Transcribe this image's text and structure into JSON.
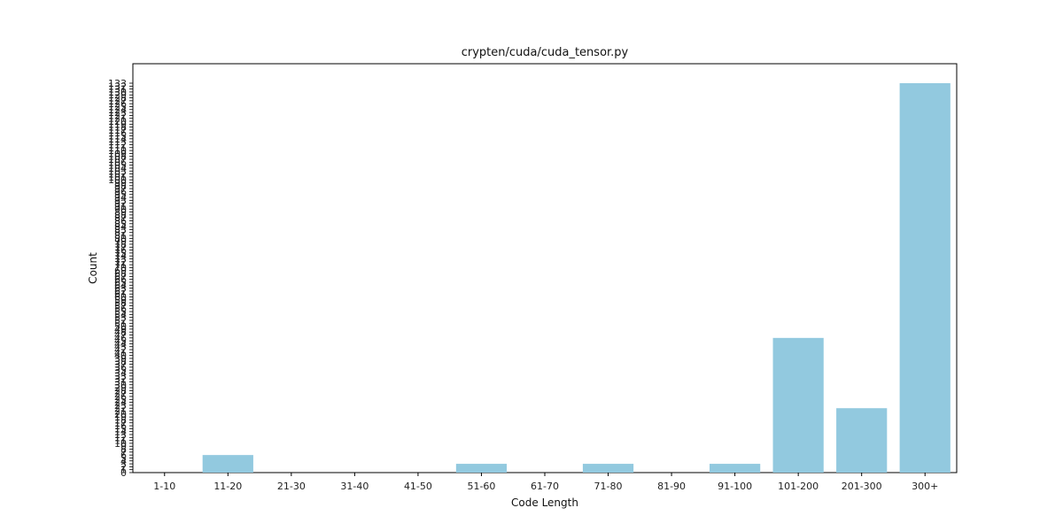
{
  "chart_data": {
    "type": "bar",
    "title": "crypten/cuda/cuda_tensor.py",
    "xlabel": "Code Length",
    "ylabel": "Count",
    "categories": [
      "1-10",
      "11-20",
      "21-30",
      "31-40",
      "41-50",
      "51-60",
      "61-70",
      "71-80",
      "81-90",
      "91-100",
      "101-200",
      "201-300",
      "300+"
    ],
    "values": [
      0,
      6,
      0,
      0,
      0,
      3,
      0,
      3,
      0,
      3,
      46,
      22,
      133
    ],
    "ylim": [
      0,
      140
    ],
    "yticks": [
      0,
      1,
      2,
      3,
      4,
      5,
      6,
      7,
      8,
      9,
      10,
      11,
      12,
      13,
      14,
      15,
      16,
      17,
      18,
      19,
      20,
      21,
      22,
      23,
      24,
      25,
      26,
      27,
      28,
      29,
      30,
      31,
      32,
      33,
      34,
      35,
      36,
      37,
      38,
      39,
      40,
      41,
      42,
      43,
      44,
      45,
      46,
      47,
      48,
      49,
      50,
      51,
      52,
      53,
      54,
      55,
      56,
      57,
      58,
      59,
      60,
      61,
      62,
      63,
      64,
      65,
      66,
      67,
      68,
      69,
      70,
      71,
      72,
      73,
      74,
      75,
      76,
      77,
      78,
      79,
      80,
      81,
      82,
      83,
      84,
      85,
      86,
      87,
      88,
      89,
      90,
      91,
      92,
      93,
      94,
      95,
      96,
      97,
      98,
      99,
      100,
      101,
      102,
      103,
      104,
      105,
      106,
      107,
      108,
      109,
      110,
      111,
      112,
      113,
      114,
      115,
      116,
      117,
      118,
      119,
      120,
      121,
      122,
      123,
      124,
      125,
      126,
      127,
      128,
      129,
      130,
      131,
      132,
      133
    ],
    "bar_color": "#92c9df",
    "grid": false,
    "legend": "none"
  }
}
